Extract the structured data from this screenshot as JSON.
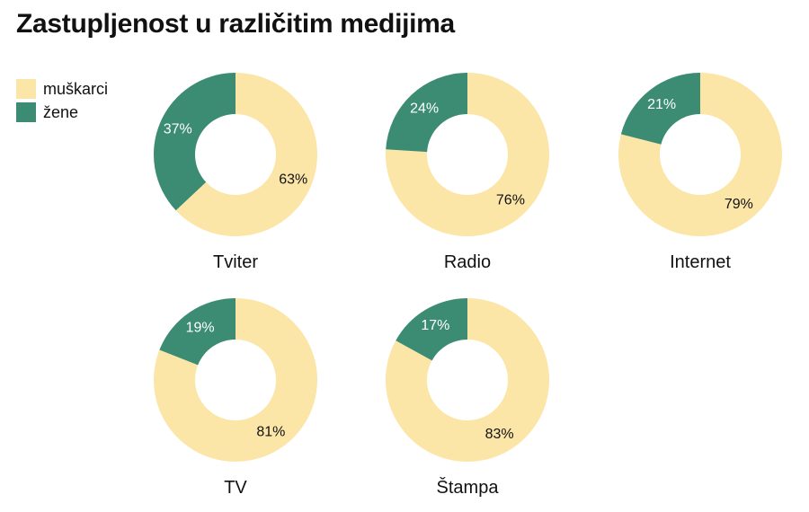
{
  "chart_data": {
    "type": "pie",
    "title": "Zastupljenost u različitim medijima",
    "legend": {
      "placement": "top-left"
    },
    "series": [
      {
        "name": "muškarci",
        "color": "#FBE6A8"
      },
      {
        "name": "žene",
        "color": "#3B8C72"
      }
    ],
    "panels": [
      {
        "category": "Tviter",
        "values": {
          "muškarci": 63,
          "žene": 37
        },
        "labels": {
          "muškarci": "63%",
          "žene": "37%"
        }
      },
      {
        "category": "Radio",
        "values": {
          "muškarci": 76,
          "žene": 24
        },
        "labels": {
          "muškarci": "76%",
          "žene": "24%"
        }
      },
      {
        "category": "Internet",
        "values": {
          "muškarci": 79,
          "žene": 21
        },
        "labels": {
          "muškarci": "79%",
          "žene": "21%"
        }
      },
      {
        "category": "TV",
        "values": {
          "muškarci": 81,
          "žene": 19
        },
        "labels": {
          "muškarci": "81%",
          "žene": "19%"
        }
      },
      {
        "category": "Štampa",
        "values": {
          "muškarci": 83,
          "žene": 17
        },
        "labels": {
          "muškarci": "83%",
          "žene": "17%"
        }
      }
    ]
  }
}
